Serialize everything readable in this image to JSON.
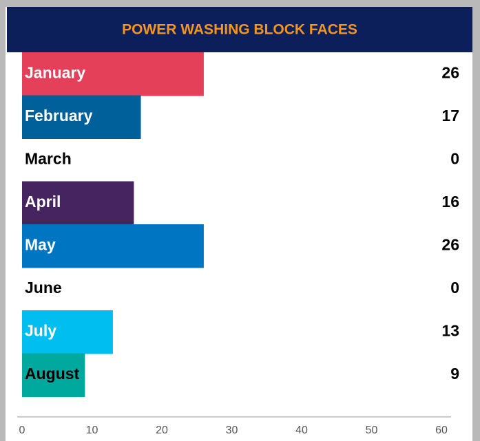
{
  "chart_data": {
    "type": "bar",
    "orientation": "horizontal",
    "title": "POWER WASHING BLOCK FACES",
    "categories": [
      "January",
      "February",
      "March",
      "April",
      "May",
      "June",
      "July",
      "August"
    ],
    "values": [
      26,
      17,
      0,
      16,
      26,
      0,
      13,
      9
    ],
    "colors": [
      "#e5405a",
      "#00609a",
      "#ffffff",
      "#45245f",
      "#0075c2",
      "#ffffff",
      "#00bff0",
      "#00a99d"
    ],
    "xlim": [
      0,
      60
    ],
    "xticks": [
      0,
      10,
      20,
      30,
      40,
      50,
      60
    ]
  }
}
